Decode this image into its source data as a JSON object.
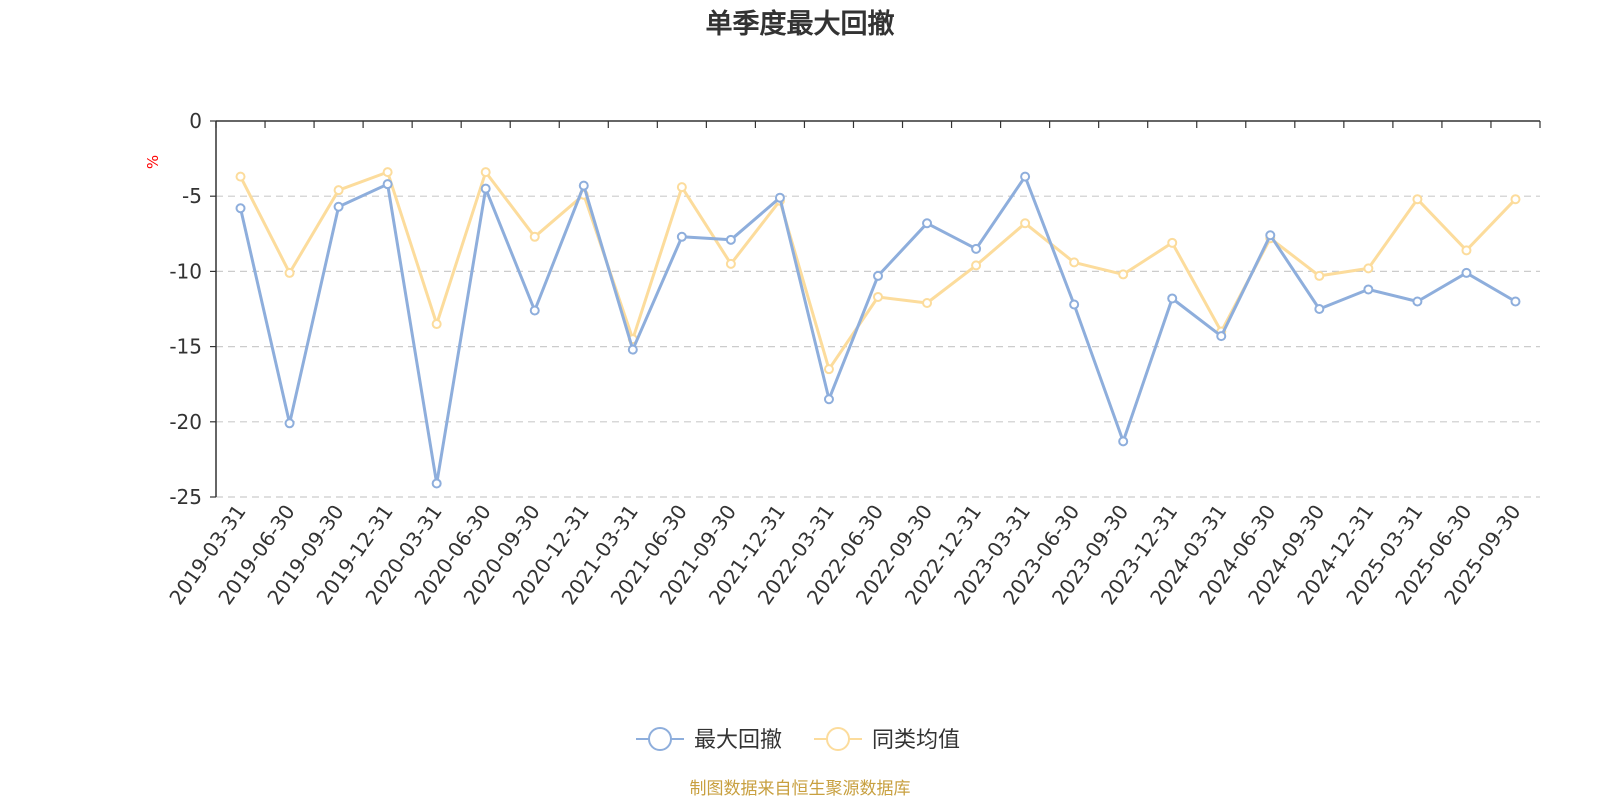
{
  "chart_data": {
    "type": "line",
    "title": "单季度最大回撤",
    "unit_label": "%",
    "ylim": [
      -25,
      0
    ],
    "yticks": [
      0,
      -5,
      -10,
      -15,
      -20,
      -25
    ],
    "grid": true,
    "legend_position": "bottom-center",
    "x": [
      "2019-03-31",
      "2019-06-30",
      "2019-09-30",
      "2019-12-31",
      "2020-03-31",
      "2020-06-30",
      "2020-09-30",
      "2020-12-31",
      "2021-03-31",
      "2021-06-30",
      "2021-09-30",
      "2021-12-31",
      "2022-03-31",
      "2022-06-30",
      "2022-09-30",
      "2022-12-31",
      "2023-03-31",
      "2023-06-30",
      "2023-09-30",
      "2023-12-31",
      "2024-03-31",
      "2024-06-30",
      "2024-09-30",
      "2024-12-31",
      "2025-03-31",
      "2025-06-30",
      "2025-09-30"
    ],
    "series": [
      {
        "name": "最大回撤",
        "color": "#8eaedc",
        "values": [
          -5.8,
          -20.1,
          -5.7,
          -4.2,
          -24.1,
          -4.5,
          -12.6,
          -4.3,
          -15.2,
          -7.7,
          -7.9,
          -5.1,
          -18.5,
          -10.3,
          -6.8,
          -8.5,
          -3.7,
          -12.2,
          -21.3,
          -11.8,
          -14.3,
          -7.6,
          -12.5,
          -11.2,
          -12.0,
          -10.1,
          -12.0
        ]
      },
      {
        "name": "同类均值",
        "color": "#fcdc9c",
        "values": [
          -3.7,
          -10.1,
          -4.6,
          -3.4,
          -13.5,
          -3.4,
          -7.7,
          -4.9,
          -14.5,
          -4.4,
          -9.5,
          -5.3,
          -16.5,
          -11.7,
          -12.1,
          -9.6,
          -6.8,
          -9.4,
          -10.2,
          -8.1,
          -14.0,
          -7.8,
          -10.3,
          -9.8,
          -5.2,
          -8.6,
          -5.2
        ]
      }
    ]
  },
  "source_text": "制图数据来自恒生聚源数据库",
  "colors": {
    "axis": "#333333",
    "grid": "#cccccc",
    "unit": "#ff0000",
    "source": "#c8a040"
  }
}
